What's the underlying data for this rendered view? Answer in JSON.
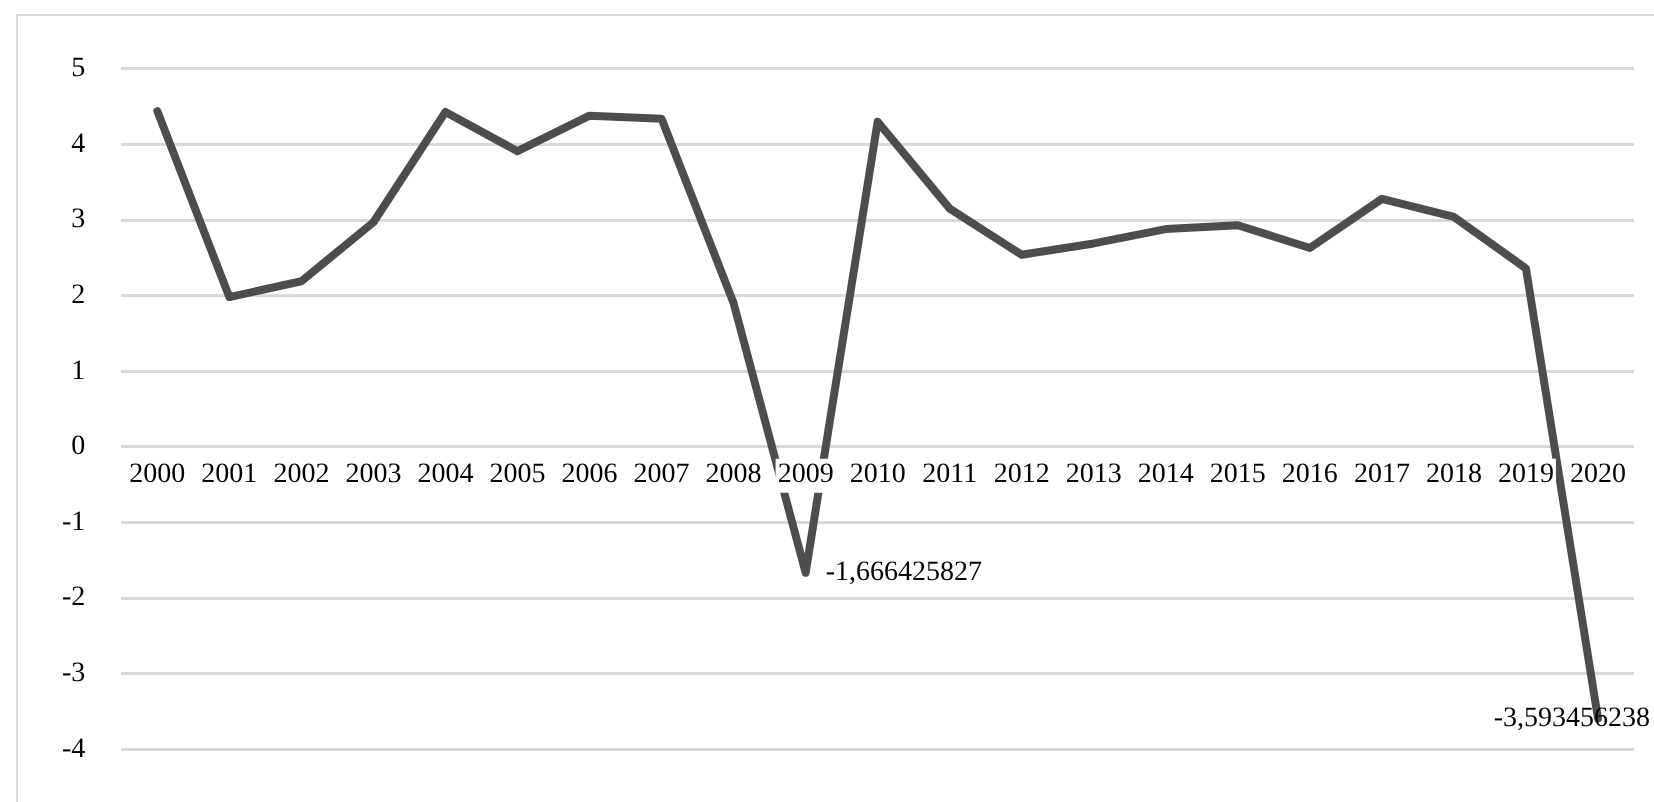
{
  "chart_data": {
    "type": "line",
    "categories": [
      "2000",
      "2001",
      "2002",
      "2003",
      "2004",
      "2005",
      "2006",
      "2007",
      "2008",
      "2009",
      "2010",
      "2011",
      "2012",
      "2013",
      "2014",
      "2015",
      "2016",
      "2017",
      "2018",
      "2019",
      "2020"
    ],
    "series": [
      {
        "color": "#4d4d4d",
        "values": [
          4.44,
          1.98,
          2.19,
          2.97,
          4.43,
          3.91,
          4.38,
          4.34,
          1.9,
          -1.666425827,
          4.3,
          3.15,
          2.54,
          2.69,
          2.88,
          2.93,
          2.63,
          3.28,
          3.04,
          2.36,
          -3.593456238
        ],
        "value_labels": [
          null,
          null,
          null,
          null,
          null,
          null,
          null,
          null,
          null,
          "-1,666425827",
          null,
          null,
          null,
          null,
          null,
          null,
          null,
          null,
          null,
          null,
          "-3,593456238"
        ]
      }
    ],
    "ylim": [
      -4,
      5
    ],
    "yticks": [
      -4,
      -3,
      -2,
      -1,
      0,
      1,
      2,
      3,
      4,
      5
    ],
    "grid": "y",
    "legend": false,
    "marker": "none",
    "line_style": "solid"
  }
}
